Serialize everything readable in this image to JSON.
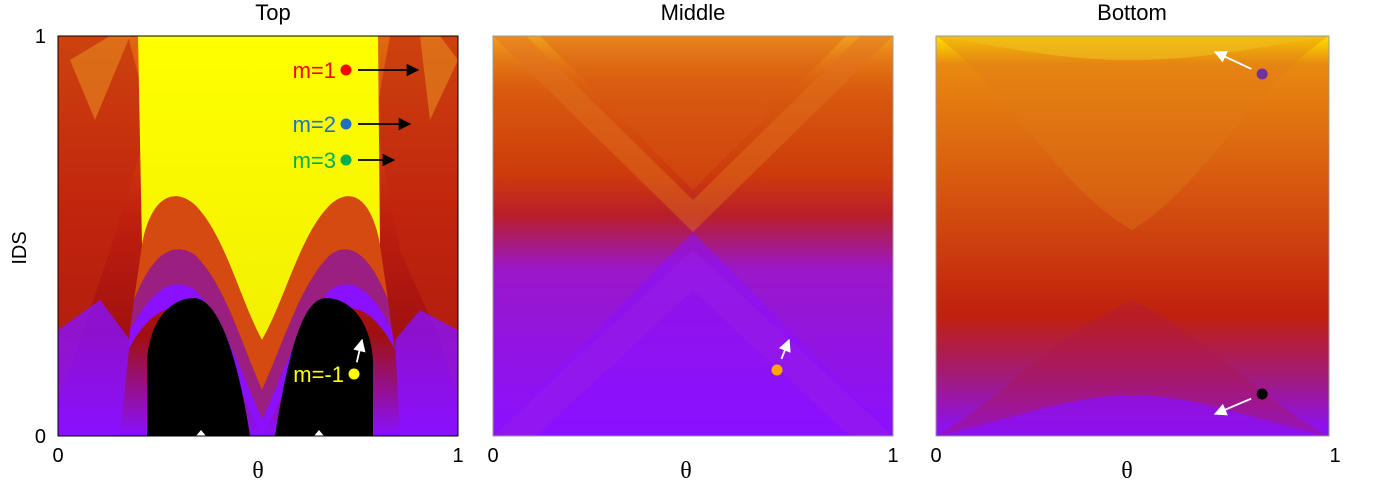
{
  "chart_data": [
    {
      "type": "heatmap",
      "title": "Top",
      "xlabel": "θ",
      "ylabel": "IDS",
      "xlim": [
        0,
        1
      ],
      "ylim": [
        0,
        1
      ],
      "x_ticks": [
        "0",
        "1"
      ],
      "y_ticks": [
        "0",
        "1"
      ],
      "colormap": [
        "#000000",
        "#8a10ff",
        "#c0200e",
        "#e06a10",
        "#ffff00"
      ],
      "markers": [
        {
          "label": "m=1",
          "color": "#ff0000",
          "x": 0.72,
          "y": 0.915,
          "arrow_to": [
            0.9,
            0.915
          ],
          "arrow_color": "#000000"
        },
        {
          "label": "m=2",
          "color": "#1f6fc6",
          "x": 0.72,
          "y": 0.78,
          "arrow_to": [
            0.88,
            0.78
          ],
          "arrow_color": "#000000"
        },
        {
          "label": "m=3",
          "color": "#00b050",
          "x": 0.72,
          "y": 0.69,
          "arrow_to": [
            0.84,
            0.69
          ],
          "arrow_color": "#000000"
        },
        {
          "label": "m=-1",
          "color": "#ffff00",
          "x": 0.74,
          "y": 0.155,
          "arrow_to": [
            0.76,
            0.24
          ],
          "arrow_color": "#ffffff"
        }
      ]
    },
    {
      "type": "heatmap",
      "title": "Middle",
      "xlabel": "θ",
      "xlim": [
        0,
        1
      ],
      "ylim": [
        0,
        1
      ],
      "x_ticks": [
        "0",
        "1"
      ],
      "colormap": [
        "#8a10ff",
        "#c0200e",
        "#e06a10",
        "#ffff00"
      ],
      "markers": [
        {
          "label": "",
          "color": "#ffa500",
          "x": 0.71,
          "y": 0.165,
          "arrow_to": [
            0.74,
            0.24
          ],
          "arrow_color": "#ffffff"
        }
      ]
    },
    {
      "type": "heatmap",
      "title": "Bottom",
      "xlabel": "θ",
      "xlim": [
        0,
        1
      ],
      "ylim": [
        0,
        1
      ],
      "x_ticks": [
        "0",
        "1"
      ],
      "colormap": [
        "#8a10ff",
        "#c0200e",
        "#e06a10",
        "#ffff00"
      ],
      "markers": [
        {
          "label": "",
          "color": "#7030a0",
          "x": 0.83,
          "y": 0.905,
          "arrow_to": [
            0.71,
            0.96
          ],
          "arrow_color": "#ffffff"
        },
        {
          "label": "",
          "color": "#000000",
          "x": 0.83,
          "y": 0.105,
          "arrow_to": [
            0.71,
            0.055
          ],
          "arrow_color": "#ffffff"
        }
      ]
    }
  ]
}
